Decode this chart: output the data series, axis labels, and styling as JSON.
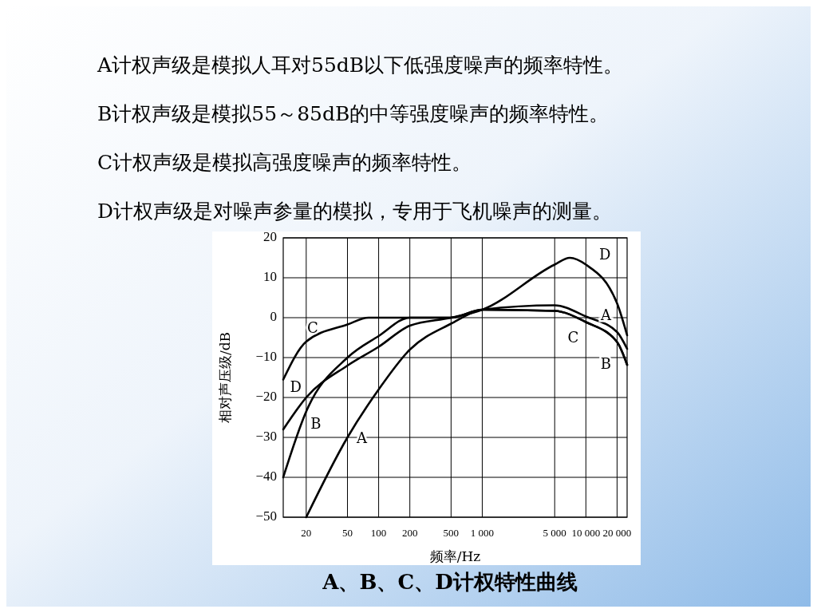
{
  "chart_data": {
    "type": "line",
    "title": "A、B、C、D计权特性曲线",
    "xlabel": "频率/Hz",
    "ylabel": "相对声压级/dB",
    "annotations": [
      "A计权声级是模拟人耳对55dB以下低强度噪声的频率特性。",
      "B计权声级是模拟55～85dB的中等强度噪声的频率特性。",
      "C计权声级是模拟高强度噪声的频率特性。",
      "D计权声级是对噪声参量的模拟，专用于飞机噪声的测量。"
    ],
    "log": "x",
    "xlim": [
      12,
      25000
    ],
    "ylim": [
      -50,
      20
    ],
    "xticks": [
      20,
      50,
      100,
      200,
      500,
      {
        "value": 1000,
        "label": "1 000"
      },
      {
        "value": 5000,
        "label": "5 000"
      },
      {
        "value": 10000,
        "label": "10 000"
      },
      {
        "value": 20000,
        "label": "20 000"
      }
    ],
    "yticks": [
      {
        "value": -50,
        "label": "−50"
      },
      {
        "value": -40,
        "label": "−40"
      },
      {
        "value": -30,
        "label": "−30"
      },
      {
        "value": -20,
        "label": "−20"
      },
      {
        "value": -10,
        "label": "−10"
      },
      0,
      10,
      20
    ],
    "grid": true,
    "line_style": "solid",
    "marker": "none",
    "series": [
      {
        "name": "A",
        "color": "#000000",
        "x": [
          20,
          50,
          100,
          200,
          500,
          1000,
          5000,
          10000,
          20000,
          25000
        ],
        "values": [
          -50,
          -30,
          -18,
          -8,
          -1.5,
          2,
          3.1,
          0.3,
          -3.6,
          -7.8
        ]
      },
      {
        "name": "B",
        "color": "#000000",
        "x": [
          12,
          20,
          50,
          100,
          200,
          500,
          1000,
          5000,
          10000,
          20000,
          25000
        ],
        "values": [
          -40,
          -23.5,
          -10,
          -4.6,
          0,
          0,
          2,
          1.7,
          -1.1,
          -6.1,
          -11.8
        ]
      },
      {
        "name": "C",
        "color": "#000000",
        "x": [
          12,
          20,
          50,
          80,
          200,
          500,
          1000,
          5000,
          10000,
          20000,
          25000
        ],
        "values": [
          -15.5,
          -6,
          -1.7,
          0,
          0,
          0,
          2,
          1.7,
          -1.1,
          -6.1,
          -11.8
        ]
      },
      {
        "name": "D",
        "color": "#000000",
        "x": [
          12,
          20,
          50,
          100,
          200,
          500,
          1000,
          5000,
          7000,
          10000,
          20000,
          25000
        ],
        "values": [
          -28,
          -20,
          -12,
          -7.3,
          -2,
          0,
          2,
          13.3,
          15,
          13.3,
          3.6,
          -4.4
        ]
      }
    ]
  }
}
